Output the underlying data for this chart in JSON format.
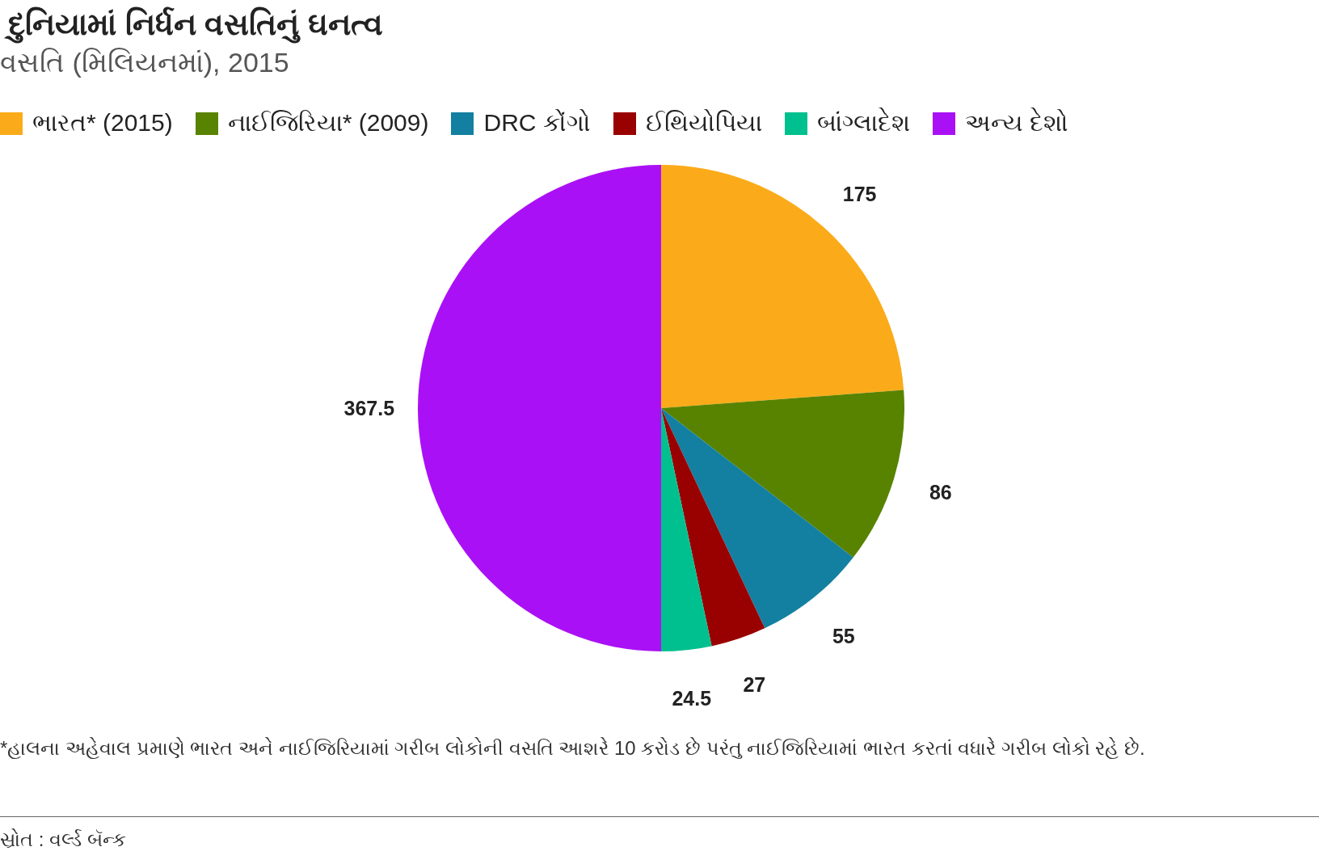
{
  "chart_data": {
    "type": "pie",
    "title": "દુનિયામાં નિર્ધન વસતિનું ઘનત્વ",
    "subtitle": "વસતિ (મિલિયનમાં), 2015",
    "categories": [
      "ભારત* (2015)",
      "નાઈજિરિયા* (2009)",
      "DRC કોંગો",
      "ઈથિયોપિયા",
      "બાંગ્લાદેશ",
      "અન્ય દેશો"
    ],
    "values": [
      175,
      86,
      55,
      27,
      24.5,
      367.5
    ],
    "colors": [
      "#fbab19",
      "#588300",
      "#1380a1",
      "#990000",
      "#00c08f",
      "#aa10f5"
    ],
    "data_labels": true,
    "legend": "top left",
    "annotations": [
      "*હાલના અહેવાલ પ્રમાણે ભારત અને નાઈજિરિયામાં ગરીબ લોકોની વસતિ આશરે 10 કરોડ છે પરંતુ નાઈજિરિયામાં ભારત કરતાં વધારે ગરીબ લોકો રહે છે.",
      "સ્રોત : વર્લ્ડ બૅન્ક"
    ]
  }
}
